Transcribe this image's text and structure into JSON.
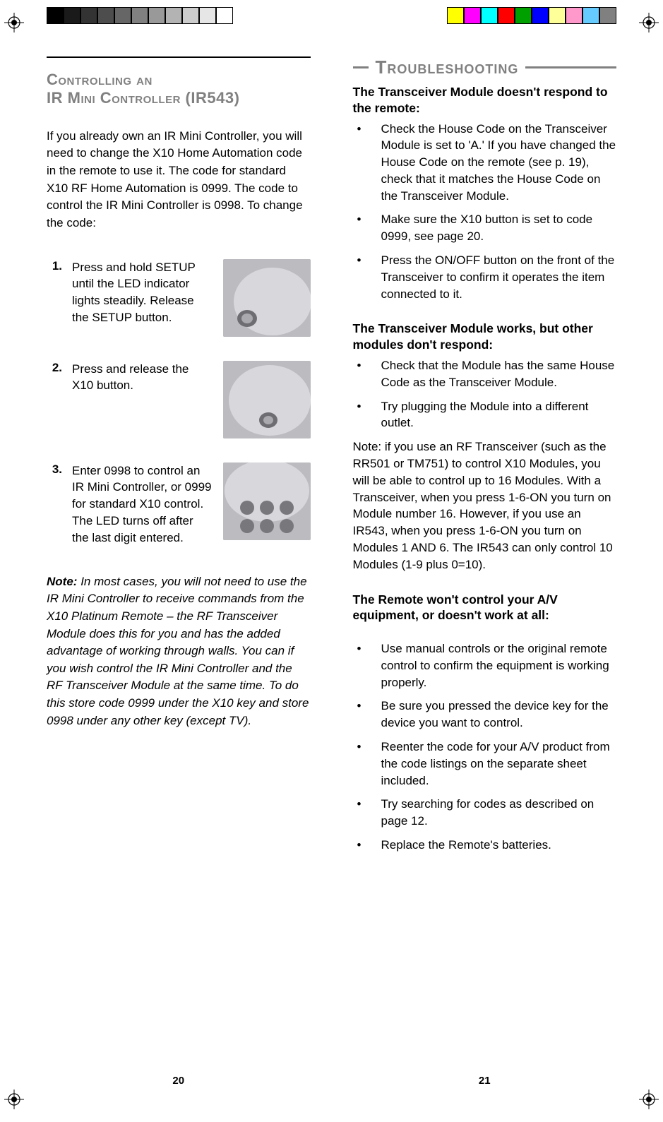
{
  "print_marks": {
    "grayscale_bar": [
      "#000000",
      "#1a1a1a",
      "#333333",
      "#4d4d4d",
      "#666666",
      "#808080",
      "#999999",
      "#b3b3b3",
      "#cccccc",
      "#e6e6e6",
      "#ffffff"
    ],
    "color_bar": [
      "#ffff00",
      "#ff00ff",
      "#00ffff",
      "#ff0000",
      "#00a000",
      "#0000ff",
      "#ffff99",
      "#ff99cc",
      "#66ccff",
      "#808080"
    ]
  },
  "left": {
    "heading_l1": "Controlling an",
    "heading_l2": "IR Mini Controller (IR543)",
    "intro": "If you already own an IR Mini Controller, you will need to change the X10 Home Automation code in the remote to use it. The code for standard X10 RF Home Automation is 0999. The code to control the IR Mini Controller is 0998. To change the code:",
    "steps": [
      {
        "n": "1.",
        "text": "Press and hold SETUP until the LED indicator lights steadily. Release the SETUP button."
      },
      {
        "n": "2.",
        "text": "Press and release the X10 button."
      },
      {
        "n": "3.",
        "text": "Enter 0998 to control an IR Mini Controller, or 0999 for standard X10 control. The LED turns off after the last digit entered."
      }
    ],
    "note_label": "Note:",
    "note": "In most cases, you will not need to use the IR Mini Controller to receive commands from the X10 Platinum Remote – the RF Transceiver Module does this for you and has the added advantage of working through walls. You can if you wish control the IR Mini Controller and the RF Transceiver Module at the same time. To do this store code 0999 under the X10 key and store 0998 under any other key (except TV).",
    "page_num": "20"
  },
  "right": {
    "heading": "Troubleshooting",
    "sections": [
      {
        "head": "The Transceiver Module doesn't respond to the remote:",
        "bullets": [
          "Check the House Code on the Transceiver Module is set to 'A.' If you have changed the House Code on the remote (see p. 19), check that it matches the House Code on the Transceiver Module.",
          "Make sure the X10 button is set to code 0999, see page 20.",
          "Press the ON/OFF button on the front of the Transceiver to confirm it operates the item connected to it."
        ]
      },
      {
        "head": "The Transceiver Module works, but other modules don't respond:",
        "bullets": [
          "Check that the Module has the same House Code as the Transceiver Module.",
          "Try plugging the Module into a different outlet."
        ],
        "after_note": "Note: if you use an RF Transceiver (such as the RR501 or TM751) to control X10 Modules, you will be able to control up to 16 Modules. With a Transceiver, when you press 1-6-ON you turn on Module number 16. However, if you use an IR543, when you press 1-6-ON you turn on Modules 1 AND 6. The IR543 can only control 10 Modules (1-9 plus 0=10)."
      },
      {
        "head": "The Remote won't control your A/V equipment, or doesn't work at all:",
        "bullets": [
          "Use manual controls or the original remote control to confirm the equipment is working properly.",
          "Be sure you pressed the device key for the device you want to control.",
          "Reenter the code for your A/V product from the code listings on the separate sheet included.",
          "Try searching for codes as described on page 12.",
          "Replace the Remote's batteries."
        ]
      }
    ],
    "page_num": "21"
  }
}
